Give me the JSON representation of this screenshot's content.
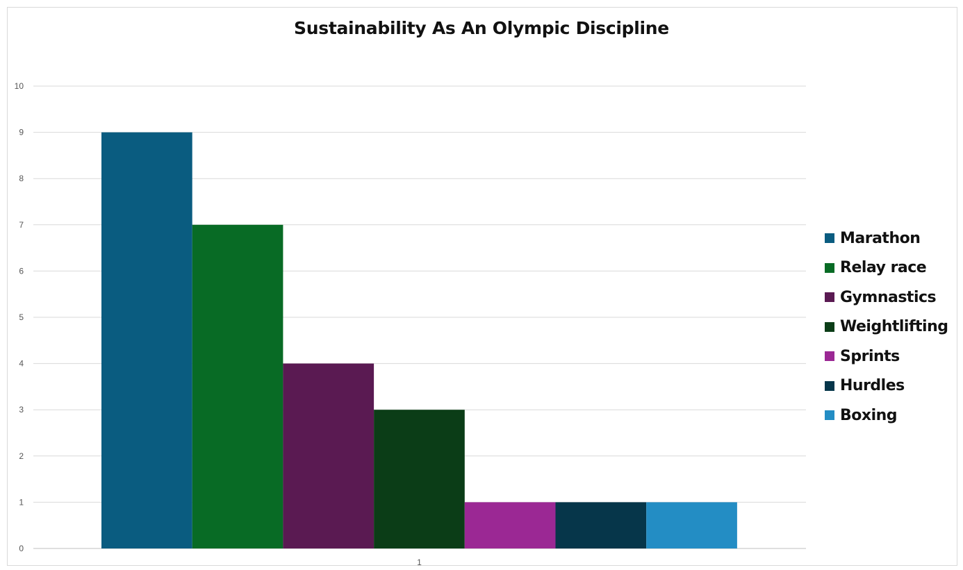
{
  "chart_data": {
    "type": "bar",
    "title": "Sustainability As An Olympic Discipline",
    "categories": [
      "1"
    ],
    "series": [
      {
        "name": "Marathon",
        "values": [
          9
        ],
        "color": "#0a5c80"
      },
      {
        "name": "Relay race",
        "values": [
          7
        ],
        "color": "#086b25"
      },
      {
        "name": "Gymnastics",
        "values": [
          4
        ],
        "color": "#5a1a52"
      },
      {
        "name": "Weightlifting",
        "values": [
          3
        ],
        "color": "#0b3d17"
      },
      {
        "name": "Sprints",
        "values": [
          1
        ],
        "color": "#9b2894"
      },
      {
        "name": "Hurdles",
        "values": [
          1
        ],
        "color": "#06364a"
      },
      {
        "name": "Boxing",
        "values": [
          1
        ],
        "color": "#238dc4"
      }
    ],
    "ylim": [
      0,
      10
    ],
    "yticks": [
      "0",
      "1",
      "2",
      "3",
      "4",
      "5",
      "6",
      "7",
      "8",
      "9",
      "10"
    ],
    "xlabel": "",
    "ylabel": "",
    "grid": true,
    "legend_position": "right"
  }
}
